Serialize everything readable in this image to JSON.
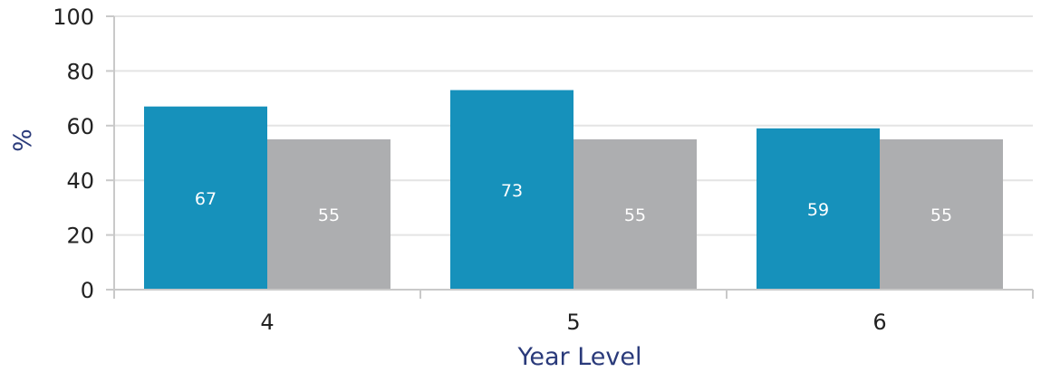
{
  "chart_data": {
    "type": "bar",
    "title": "",
    "xlabel": "Year Level",
    "ylabel": "%",
    "ylim": [
      0,
      100
    ],
    "yticks": [
      0,
      20,
      40,
      60,
      80,
      100
    ],
    "categories": [
      "4",
      "5",
      "6"
    ],
    "series": [
      {
        "color": "#1691bb",
        "values": [
          67,
          73,
          59
        ]
      },
      {
        "color": "#adaeb0",
        "values": [
          55,
          55,
          55
        ]
      }
    ],
    "grid": true,
    "legend": "none"
  }
}
